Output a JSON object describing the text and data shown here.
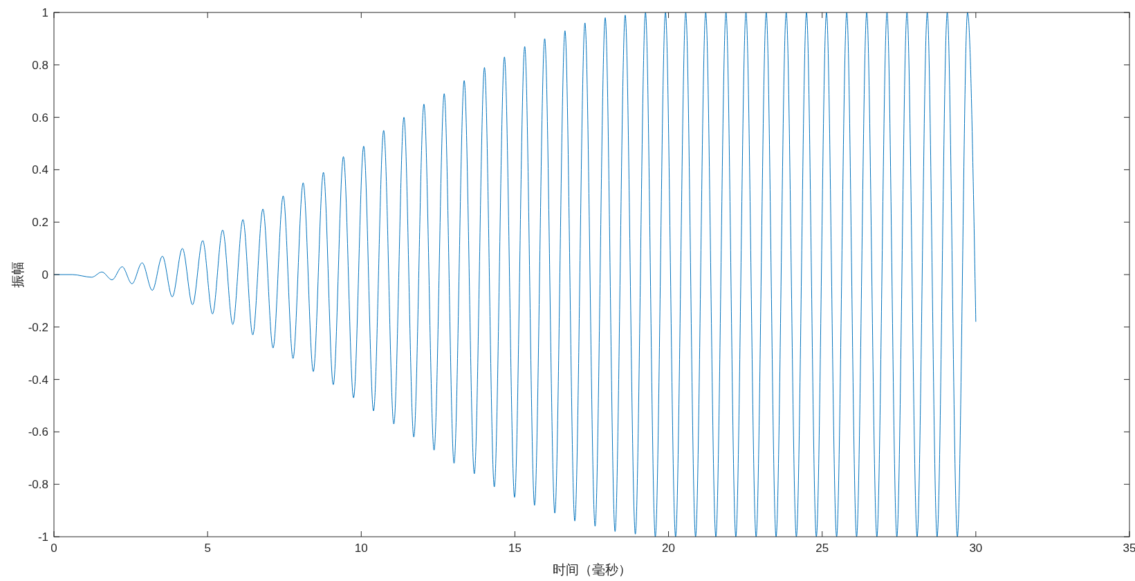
{
  "chart_data": {
    "type": "line",
    "xlabel": "时间（毫秒）",
    "ylabel": "振幅",
    "xlim": [
      0,
      35
    ],
    "ylim": [
      -1,
      1
    ],
    "xticks": [
      0,
      5,
      10,
      15,
      20,
      25,
      30,
      35
    ],
    "yticks": [
      -1,
      -0.8,
      -0.6,
      -0.4,
      -0.2,
      0,
      0.2,
      0.4,
      0.6,
      0.8,
      1
    ],
    "grid": false,
    "marker": "none",
    "line_style": "solid",
    "series": [
      {
        "color": "#0072bd",
        "x": [
          0,
          0.6,
          1.23,
          1.56,
          1.89,
          2.22,
          2.54,
          2.87,
          3.2,
          3.53,
          3.85,
          4.18,
          4.51,
          4.84,
          5.16,
          5.49,
          5.82,
          6.15,
          6.47,
          6.8,
          7.13,
          7.46,
          7.78,
          8.11,
          8.44,
          8.77,
          9.09,
          9.42,
          9.75,
          10.08,
          10.4,
          10.73,
          11.06,
          11.39,
          11.71,
          12.04,
          12.37,
          12.7,
          13.02,
          13.35,
          13.68,
          14.01,
          14.33,
          14.66,
          14.99,
          15.32,
          15.64,
          15.97,
          16.3,
          16.63,
          16.95,
          17.28,
          17.61,
          17.94,
          18.26,
          18.59,
          18.92,
          19.25,
          19.57,
          19.9,
          20.23,
          20.56,
          20.88,
          21.21,
          21.54,
          21.87,
          22.19,
          22.52,
          22.85,
          23.18,
          23.5,
          23.83,
          24.16,
          24.49,
          24.81,
          25.14,
          25.47,
          25.8,
          26.12,
          26.45,
          26.78,
          27.11,
          27.43,
          27.76,
          28.09,
          28.42,
          28.74,
          29.07,
          29.4,
          29.73,
          30
        ],
        "values": [
          0,
          0,
          -0.01,
          0.01,
          -0.02,
          0.03,
          -0.035,
          0.045,
          -0.06,
          0.07,
          -0.085,
          0.1,
          -0.115,
          0.13,
          -0.15,
          0.17,
          -0.19,
          0.21,
          -0.23,
          0.25,
          -0.28,
          0.3,
          -0.32,
          0.35,
          -0.37,
          0.39,
          -0.42,
          0.45,
          -0.47,
          0.49,
          -0.52,
          0.55,
          -0.57,
          0.6,
          -0.62,
          0.65,
          -0.67,
          0.69,
          -0.72,
          0.74,
          -0.76,
          0.79,
          -0.81,
          0.83,
          -0.85,
          0.87,
          -0.88,
          0.9,
          -0.91,
          0.93,
          -0.94,
          0.96,
          -0.96,
          0.98,
          -0.98,
          0.99,
          -0.99,
          1,
          -1,
          1,
          -1,
          1,
          -1,
          1,
          -1,
          1,
          -1,
          1,
          -1,
          1,
          -1,
          1,
          -1,
          1,
          -1,
          1,
          -1,
          1,
          -1,
          1,
          -1,
          1,
          -1,
          1,
          -1,
          1,
          -1,
          1,
          -1,
          1,
          -0.18
        ]
      }
    ]
  }
}
